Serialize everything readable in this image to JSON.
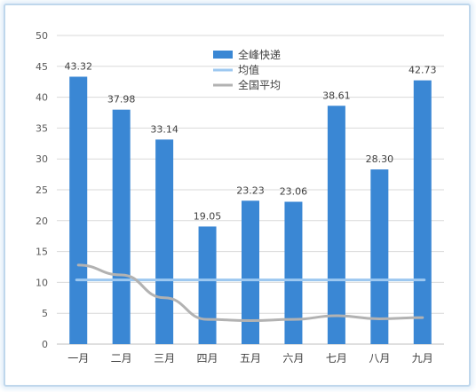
{
  "chart_data": {
    "type": "bar",
    "categories": [
      "一月",
      "二月",
      "三月",
      "四月",
      "五月",
      "六月",
      "七月",
      "八月",
      "九月"
    ],
    "series": [
      {
        "name": "全峰快递",
        "type": "bar",
        "color": "#3a87d4",
        "values": [
          43.32,
          37.98,
          33.14,
          19.05,
          23.23,
          23.06,
          38.61,
          28.3,
          42.73
        ],
        "labels": [
          "43.32",
          "37.98",
          "33.14",
          "19.05",
          "23.23",
          "23.06",
          "38.61",
          "28.30",
          "42.73"
        ]
      },
      {
        "name": "均值",
        "type": "line",
        "color": "#9dc8f0",
        "values": [
          10.4,
          10.4,
          10.4,
          10.4,
          10.4,
          10.4,
          10.4,
          10.4,
          10.4
        ]
      },
      {
        "name": "全国平均",
        "type": "line",
        "color": "#b2b2b2",
        "values": [
          12.8,
          11.2,
          7.5,
          4.0,
          3.8,
          4.0,
          4.6,
          4.1,
          4.3
        ]
      }
    ],
    "yticks": [
      "0",
      "5",
      "10",
      "15",
      "20",
      "25",
      "30",
      "35",
      "40",
      "45",
      "50"
    ],
    "ylim": [
      0,
      50
    ],
    "grid": true,
    "legend_position": "top-center"
  }
}
